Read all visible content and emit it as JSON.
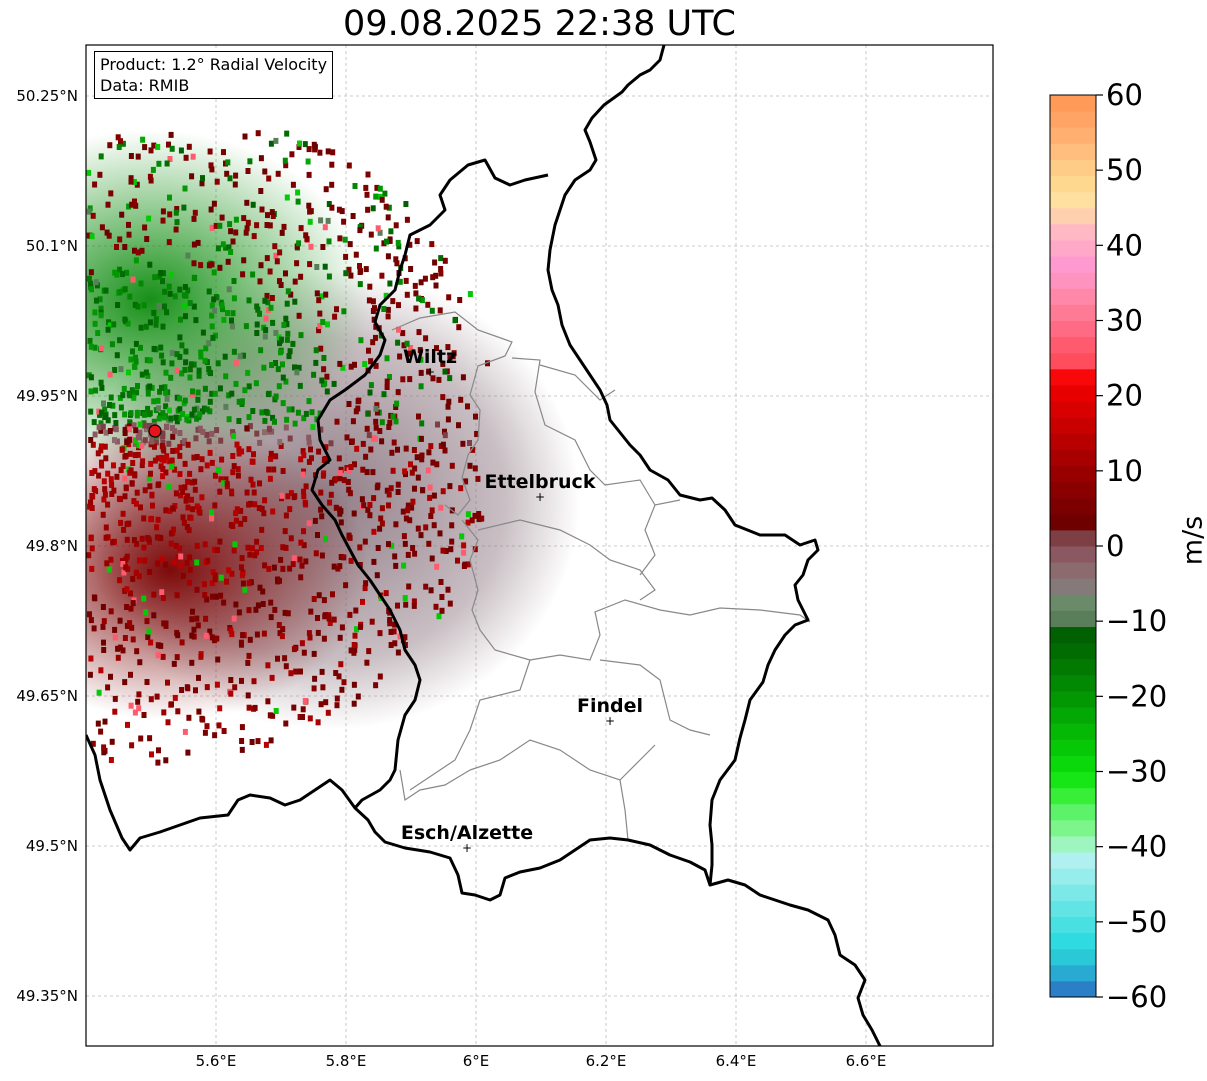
{
  "title": "09.08.2025 22:38 UTC",
  "info": {
    "product": "Product: 1.2° Radial Velocity",
    "data": "Data: RMIB"
  },
  "axes": {
    "lon_ticks": [
      "5.6°E",
      "5.8°E",
      "6°E",
      "6.2°E",
      "6.4°E",
      "6.6°E"
    ],
    "lat_ticks": [
      "50.25°N",
      "50.1°N",
      "49.95°N",
      "49.8°N",
      "49.65°N",
      "49.5°N",
      "49.35°N"
    ],
    "lon_range": [
      5.4,
      6.8
    ],
    "lat_range": [
      49.3,
      50.3
    ]
  },
  "cities": [
    {
      "name": "Wiltz",
      "lon": 5.93,
      "lat": 49.97
    },
    {
      "name": "Ettelbruck",
      "lon": 6.1,
      "lat": 49.85
    },
    {
      "name": "Findel",
      "lon": 6.21,
      "lat": 49.627
    },
    {
      "name": "Esch/Alzette",
      "lon": 5.99,
      "lat": 49.5
    }
  ],
  "radar_site": {
    "lon": 5.505,
    "lat": 49.914,
    "color": "#e8141c"
  },
  "colorbar": {
    "unit": "m/s",
    "tick_labels": [
      "60",
      "50",
      "40",
      "30",
      "20",
      "10",
      "0",
      "−10",
      "−20",
      "−30",
      "−40",
      "−50",
      "−60"
    ],
    "min": -60,
    "max": 60,
    "colors": [
      "#2b7fc6",
      "#29aad2",
      "#2bc8d8",
      "#2fdbe0",
      "#49e0e2",
      "#63e4e4",
      "#7de8e8",
      "#97ecec",
      "#b0f0f0",
      "#9ef5c0",
      "#7cf58a",
      "#5cf26a",
      "#36ef36",
      "#16e616",
      "#0ad80a",
      "#06c806",
      "#05b805",
      "#04a804",
      "#039803",
      "#038803",
      "#027a02",
      "#016c01",
      "#016001",
      "#5a7d5a",
      "#6a8a6a",
      "#857a7a",
      "#8c6b6e",
      "#8a5860",
      "#7d3f44",
      "#6e0000",
      "#7c0000",
      "#8a0000",
      "#980000",
      "#a80000",
      "#b80000",
      "#c80000",
      "#d80000",
      "#e80000",
      "#f80808",
      "#ff4d5e",
      "#ff5a6e",
      "#ff6b84",
      "#ff7a94",
      "#ff88a8",
      "#ff93c0",
      "#ff9ad0",
      "#ffa8c8",
      "#ffb8c4",
      "#ffd0b0",
      "#ffe0a0",
      "#ffd890",
      "#ffcc88",
      "#ffbe7e",
      "#ffb070",
      "#ffa464",
      "#ff9a58"
    ]
  }
}
